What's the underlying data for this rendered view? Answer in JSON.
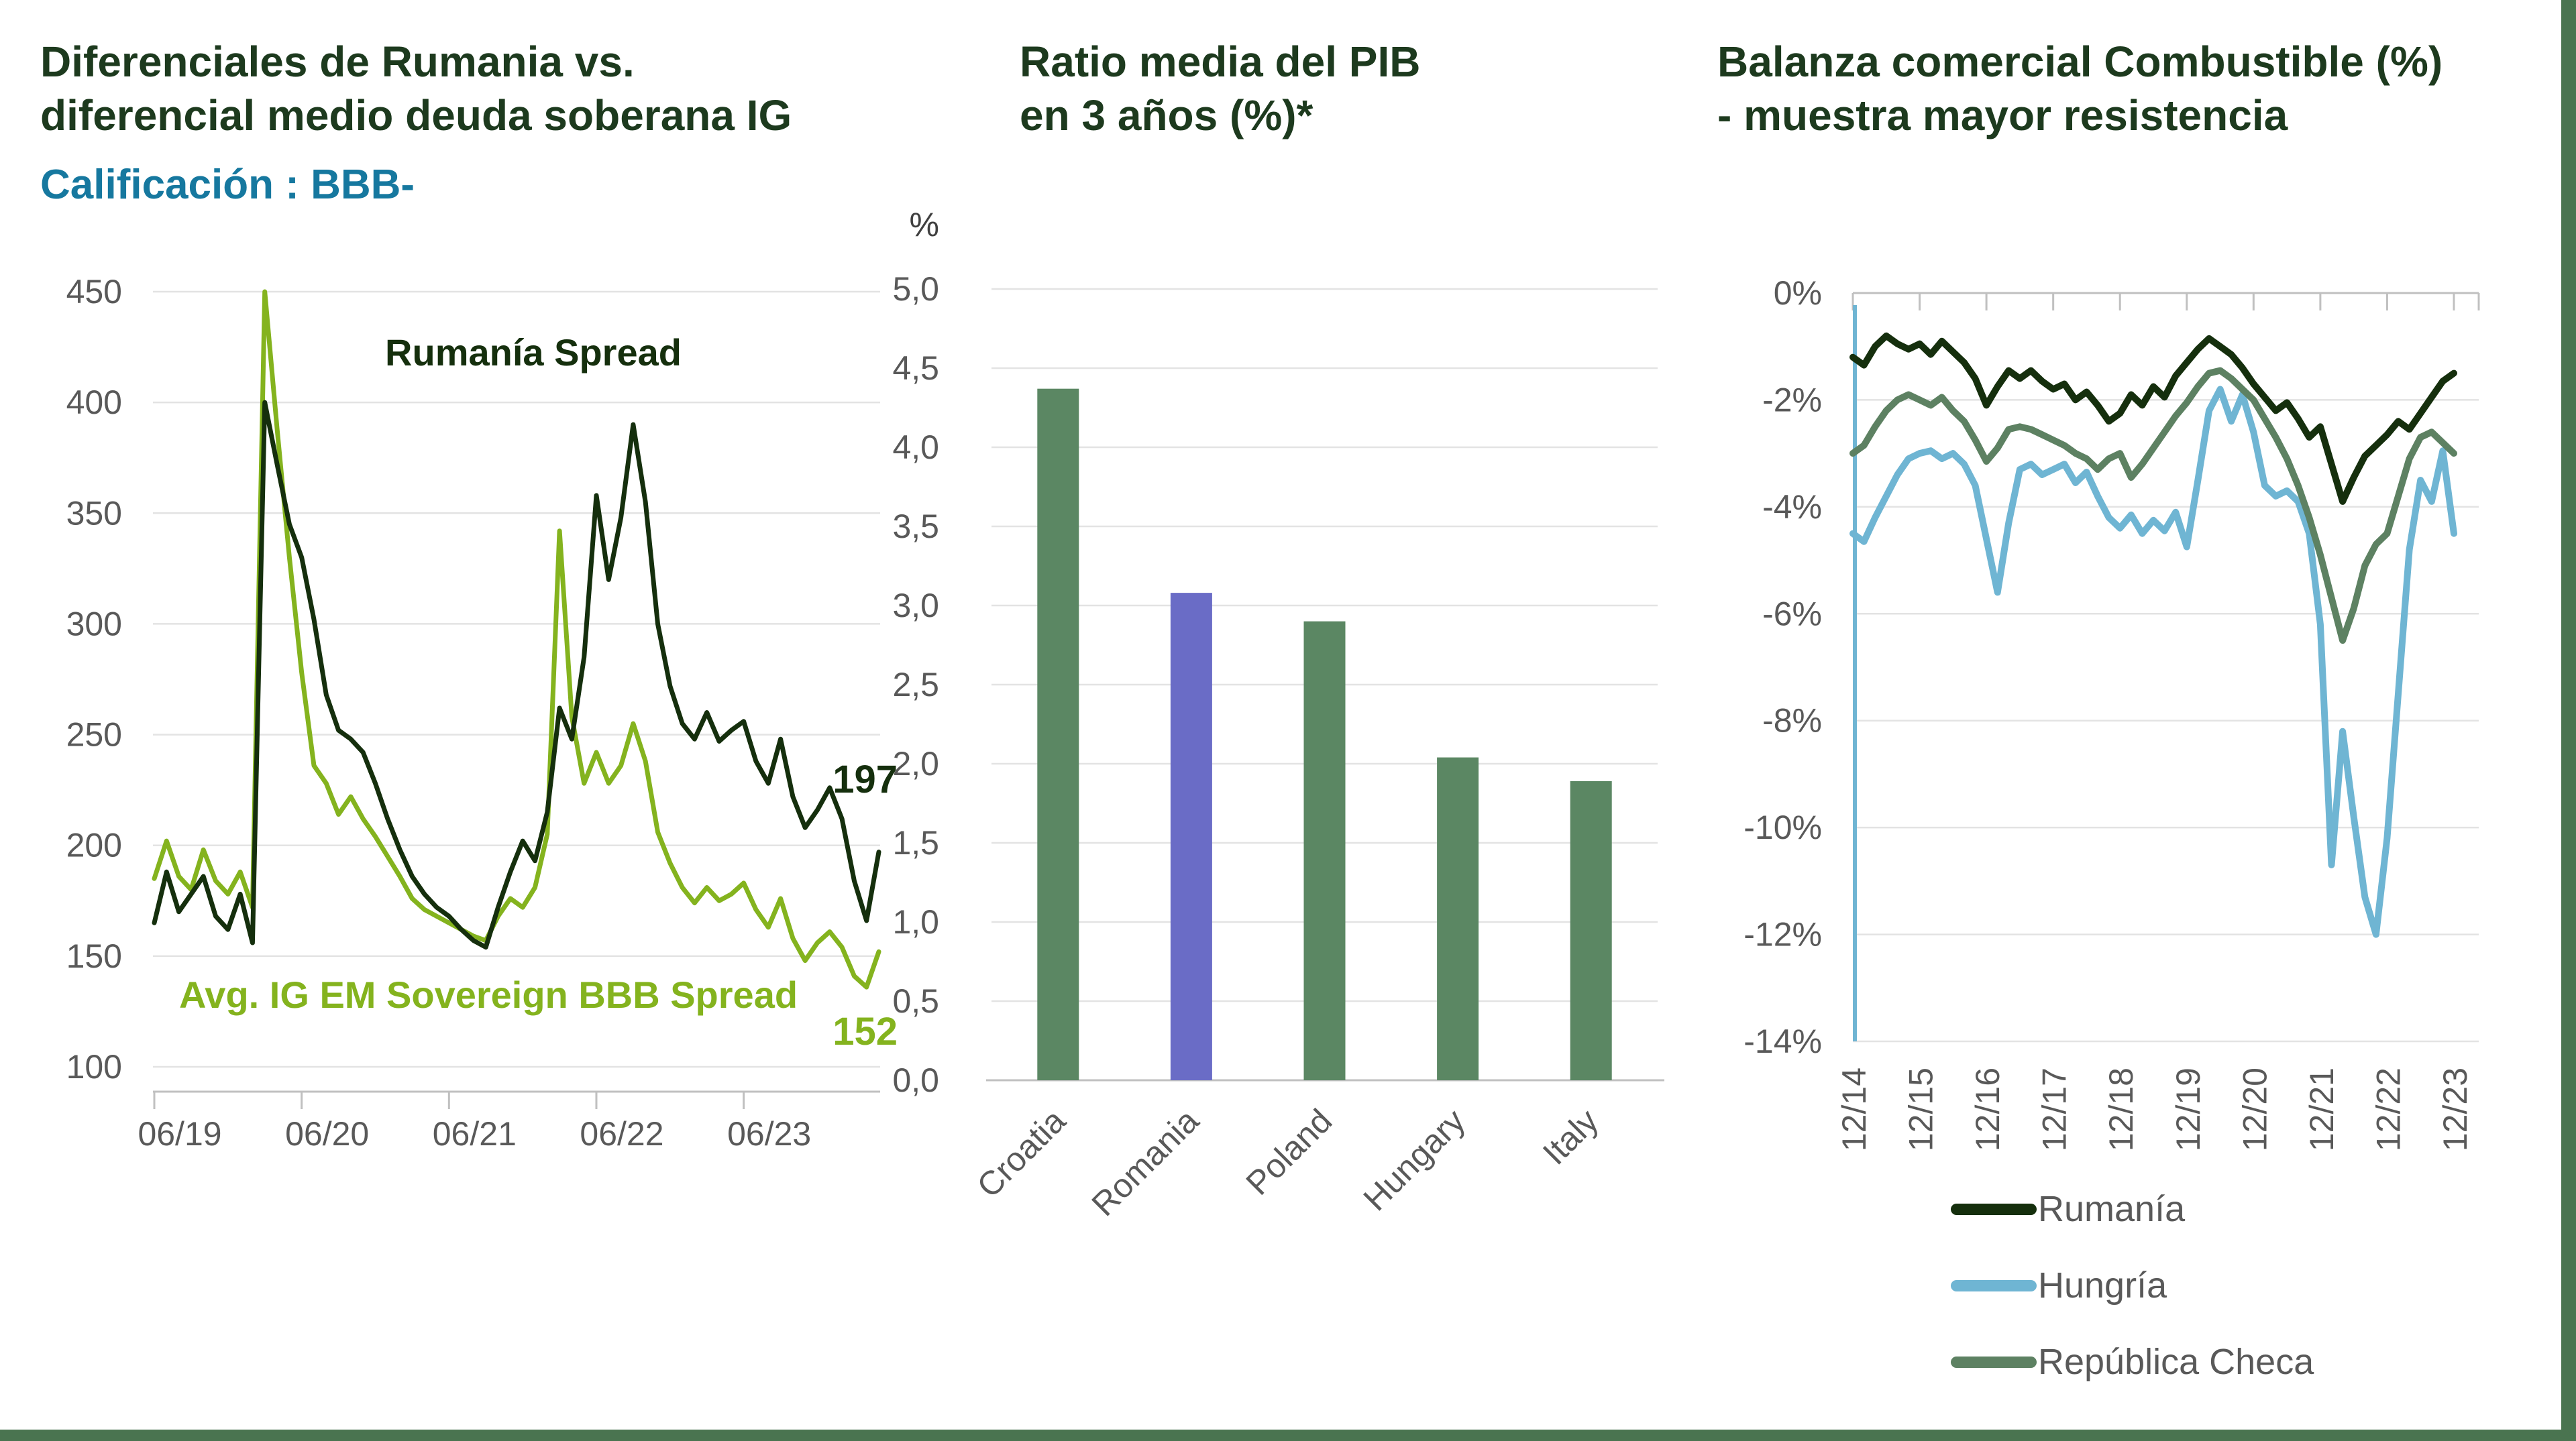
{
  "palette": {
    "title_green": "#1d3a1e",
    "subtitle_teal": "#16789f",
    "dark_green_line": "#152f0d",
    "olive_line": "#84b31e",
    "sage_line": "#5d8162",
    "bar_green": "#5b8763",
    "bar_purple": "#6a6cc6",
    "light_blue_line": "#6fb5d3",
    "axis_text": "#595959",
    "gridline": "#e3e3e3",
    "axis_line": "#c0c0c0",
    "frame_green": "#4a7450"
  },
  "chart_data": [
    {
      "id": "romania-spread-vs-bbb",
      "type": "line",
      "title_lines": [
        "Diferenciales de Rumania vs.",
        "diferencial medio deuda soberana IG"
      ],
      "subtitle": "Calificación : BBB-",
      "ylim": [
        100,
        450
      ],
      "y_ticks": [
        100,
        150,
        200,
        250,
        300,
        350,
        400,
        450
      ],
      "x_tick_labels": [
        "06/19",
        "06/20",
        "06/21",
        "06/22",
        "06/23"
      ],
      "x_tick_indices": [
        0,
        12,
        24,
        36,
        48
      ],
      "grid": true,
      "legend_position": "inline-annotations",
      "series": [
        {
          "name": "Rumanía Spread",
          "color": "#152f0d",
          "end_label": "197",
          "values": [
            165,
            188,
            170,
            178,
            186,
            168,
            162,
            178,
            156,
            400,
            372,
            345,
            330,
            302,
            268,
            252,
            248,
            242,
            228,
            212,
            198,
            186,
            178,
            172,
            168,
            162,
            157,
            154,
            172,
            188,
            202,
            193,
            215,
            262,
            248,
            285,
            358,
            320,
            348,
            390,
            355,
            300,
            272,
            255,
            248,
            260,
            247,
            252,
            256,
            238,
            228,
            248,
            222,
            208,
            216,
            226,
            212,
            184,
            166,
            197
          ]
        },
        {
          "name": "Avg. IG EM Sovereign BBB Spread",
          "color": "#84b31e",
          "end_label": "152",
          "values": [
            185,
            202,
            186,
            180,
            198,
            184,
            178,
            188,
            172,
            450,
            388,
            330,
            278,
            236,
            228,
            214,
            222,
            212,
            204,
            195,
            186,
            176,
            171,
            168,
            165,
            162,
            159,
            157,
            168,
            176,
            172,
            181,
            205,
            342,
            258,
            228,
            242,
            228,
            236,
            255,
            238,
            206,
            192,
            181,
            174,
            181,
            175,
            178,
            183,
            171,
            163,
            176,
            158,
            148,
            156,
            161,
            154,
            141,
            136,
            152
          ]
        }
      ]
    },
    {
      "id": "gdp-ratio-3y",
      "type": "bar",
      "title_lines": [
        "Ratio media del PIB",
        "en 3 años (%)*"
      ],
      "unit_label": "%",
      "ylim": [
        0,
        5
      ],
      "y_tick_values": [
        0,
        0.5,
        1,
        1.5,
        2,
        2.5,
        3,
        3.5,
        4,
        4.5,
        5
      ],
      "y_tick_labels": [
        "0,0",
        "0,5",
        "1,0",
        "1,5",
        "2,0",
        "2,5",
        "3,0",
        "3,5",
        "4,0",
        "4,5",
        "5,0"
      ],
      "categories": [
        "Croatia",
        "Romania",
        "Poland",
        "Hungary",
        "Italy"
      ],
      "values": [
        4.37,
        3.08,
        2.9,
        2.04,
        1.89
      ],
      "highlight_index": 1,
      "bar_color": "#5b8763",
      "highlight_color": "#6a6cc6",
      "grid": true
    },
    {
      "id": "fuel-trade-balance",
      "type": "line",
      "title_lines": [
        "Balanza comercial Combustible (%)",
        "- muestra mayor resistencia"
      ],
      "ylim": [
        -14,
        0
      ],
      "y_tick_values": [
        0,
        -2,
        -4,
        -6,
        -8,
        -10,
        -12,
        -14
      ],
      "y_tick_labels": [
        "0%",
        "-2%",
        "-4%",
        "-6%",
        "-8%",
        "-10%",
        "-12%",
        "-14%"
      ],
      "x_tick_labels": [
        "12/14",
        "12/15",
        "12/16",
        "12/17",
        "12/18",
        "12/19",
        "12/20",
        "12/21",
        "12/22",
        "12/23"
      ],
      "x_tick_indices": [
        0,
        6,
        12,
        18,
        24,
        30,
        36,
        42,
        48,
        54
      ],
      "grid": true,
      "legend_position": "bottom",
      "series": [
        {
          "name": "Rumanía",
          "color": "#152f0d",
          "values": [
            -1.2,
            -1.35,
            -1.0,
            -0.8,
            -0.95,
            -1.05,
            -0.95,
            -1.15,
            -0.9,
            -1.1,
            -1.3,
            -1.6,
            -2.1,
            -1.75,
            -1.45,
            -1.6,
            -1.45,
            -1.65,
            -1.8,
            -1.7,
            -2.0,
            -1.85,
            -2.1,
            -2.4,
            -2.25,
            -1.9,
            -2.1,
            -1.75,
            -1.95,
            -1.55,
            -1.3,
            -1.05,
            -0.85,
            -1.0,
            -1.15,
            -1.4,
            -1.7,
            -1.95,
            -2.2,
            -2.05,
            -2.35,
            -2.7,
            -2.5,
            -3.2,
            -3.9,
            -3.45,
            -3.05,
            -2.85,
            -2.65,
            -2.4,
            -2.55,
            -2.25,
            -1.95,
            -1.65,
            -1.5
          ]
        },
        {
          "name": "Hungría",
          "color": "#6fb5d3",
          "values": [
            -4.5,
            -4.65,
            -4.2,
            -3.8,
            -3.4,
            -3.1,
            -3.0,
            -2.95,
            -3.1,
            -3.0,
            -3.2,
            -3.6,
            -4.6,
            -5.6,
            -4.3,
            -3.3,
            -3.2,
            -3.4,
            -3.3,
            -3.2,
            -3.55,
            -3.35,
            -3.8,
            -4.2,
            -4.4,
            -4.15,
            -4.5,
            -4.25,
            -4.45,
            -4.1,
            -4.75,
            -3.5,
            -2.2,
            -1.8,
            -2.4,
            -1.9,
            -2.6,
            -3.6,
            -3.8,
            -3.7,
            -3.9,
            -4.5,
            -6.2,
            -10.7,
            -8.2,
            -9.8,
            -11.3,
            -12.0,
            -10.2,
            -7.5,
            -4.8,
            -3.5,
            -3.9,
            -2.95,
            -4.5
          ]
        },
        {
          "name": "República Checa",
          "color": "#5d8162",
          "values": [
            -3.0,
            -2.85,
            -2.5,
            -2.2,
            -2.0,
            -1.9,
            -2.0,
            -2.1,
            -1.95,
            -2.2,
            -2.4,
            -2.75,
            -3.15,
            -2.9,
            -2.55,
            -2.5,
            -2.55,
            -2.65,
            -2.75,
            -2.85,
            -3.0,
            -3.1,
            -3.3,
            -3.1,
            -3.0,
            -3.45,
            -3.2,
            -2.9,
            -2.6,
            -2.3,
            -2.05,
            -1.75,
            -1.5,
            -1.45,
            -1.6,
            -1.8,
            -2.0,
            -2.35,
            -2.7,
            -3.1,
            -3.6,
            -4.2,
            -4.9,
            -5.7,
            -6.5,
            -5.9,
            -5.1,
            -4.7,
            -4.5,
            -3.8,
            -3.1,
            -2.7,
            -2.6,
            -2.8,
            -3.0
          ]
        }
      ]
    }
  ]
}
